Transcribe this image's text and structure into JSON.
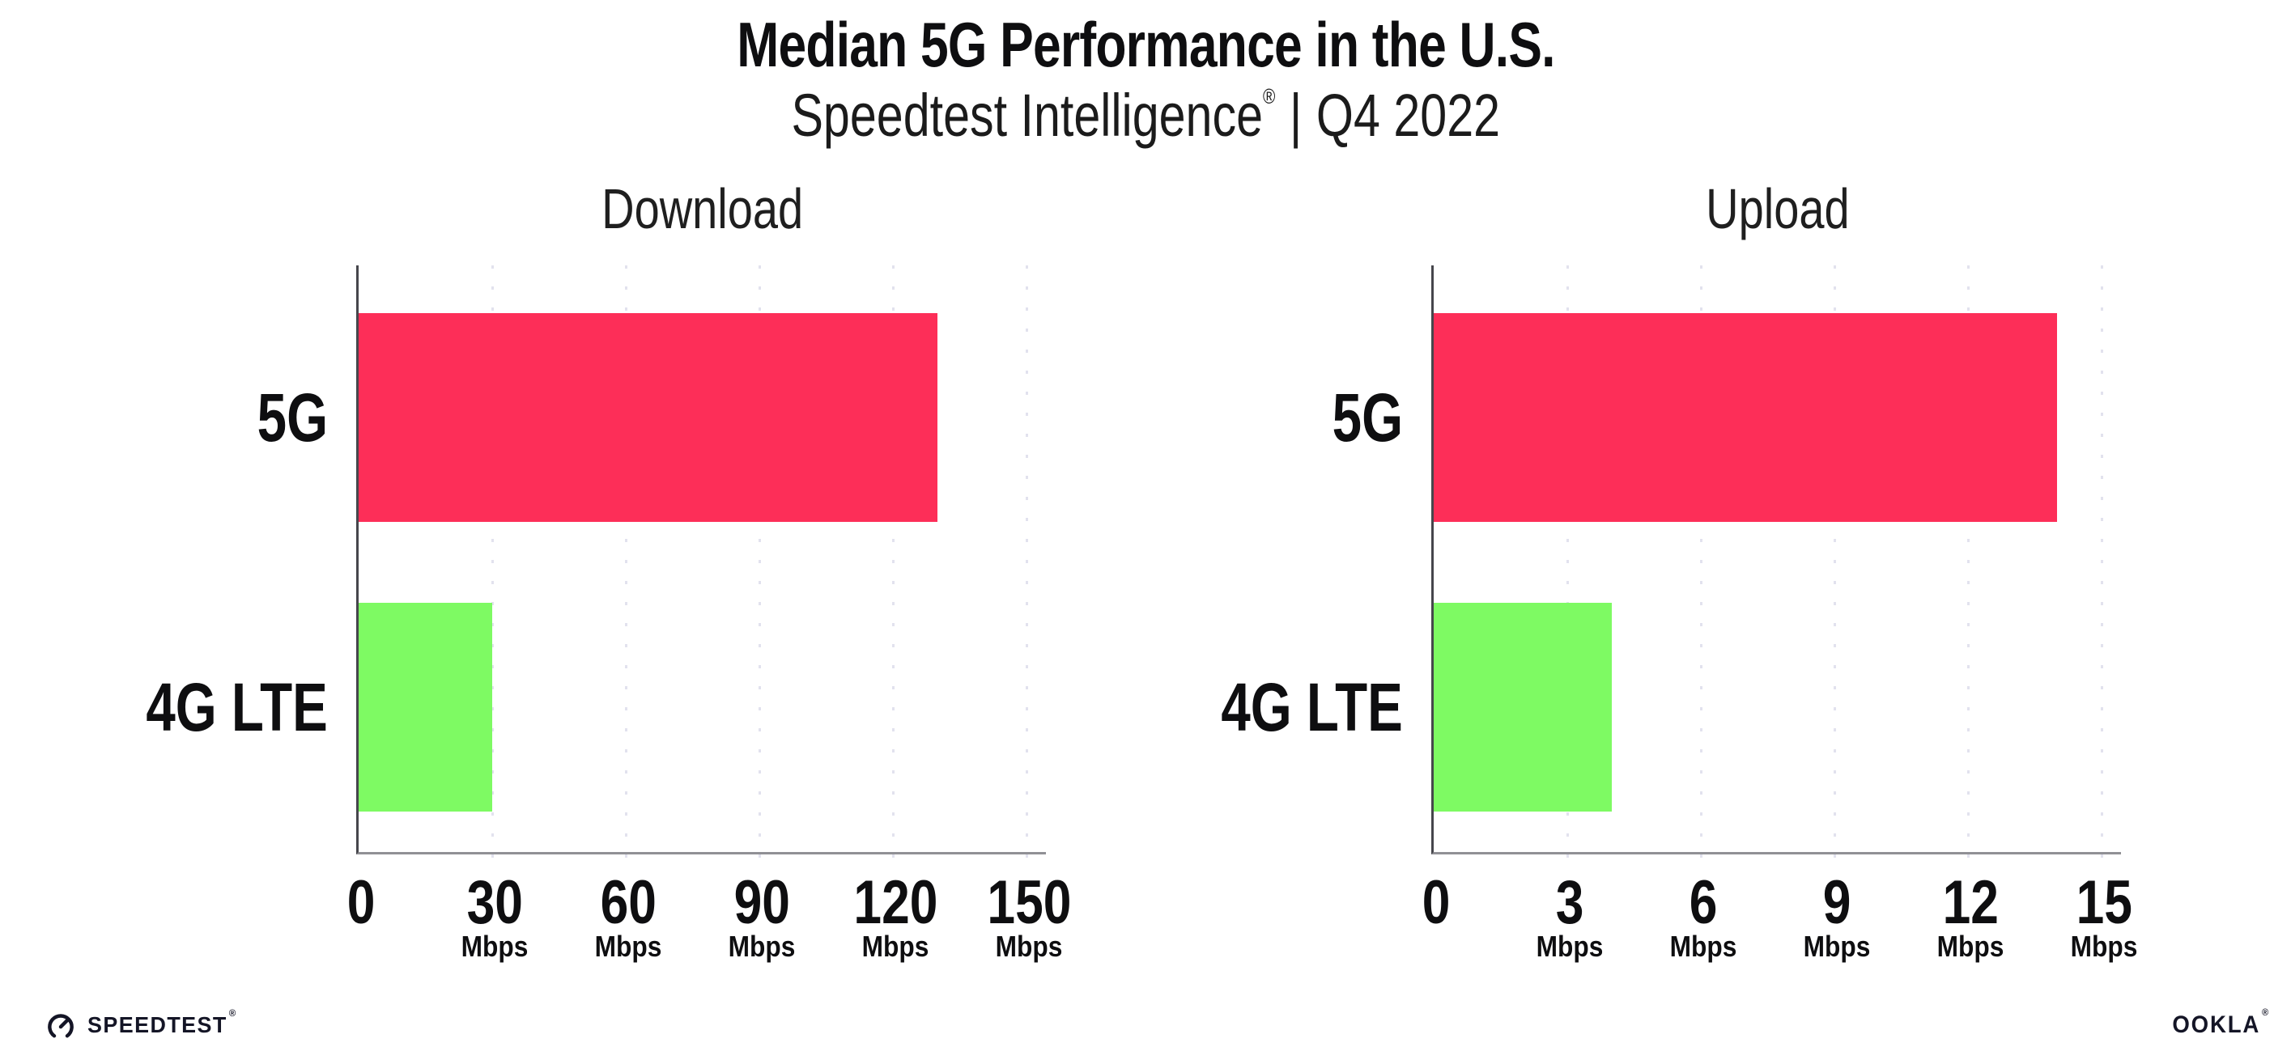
{
  "header": {
    "title": "Median 5G Performance in the U.S.",
    "subtitle": {
      "brand": "Speedtest Intelligence",
      "reg_mark": "®",
      "divider": "|",
      "period": "Q4 2022"
    }
  },
  "chart_data": [
    {
      "type": "bar",
      "orientation": "horizontal",
      "title": "Download",
      "categories": [
        "5G",
        "4G LTE"
      ],
      "values": [
        130,
        30
      ],
      "unit": "Mbps",
      "xlabel": "",
      "ylabel": "",
      "xlim": [
        0,
        150
      ],
      "xticks": [
        0,
        30,
        60,
        90,
        120,
        150
      ],
      "xtick_unit": "Mbps",
      "bar_colors": [
        "#fd2e58",
        "#7efa63"
      ],
      "grid": "vertical-dotted-at-major-ticks",
      "legend": "none"
    },
    {
      "type": "bar",
      "orientation": "horizontal",
      "title": "Upload",
      "categories": [
        "5G",
        "4G LTE"
      ],
      "values": [
        14,
        4
      ],
      "unit": "Mbps",
      "xlabel": "",
      "ylabel": "",
      "xlim": [
        0,
        15
      ],
      "xticks": [
        0,
        3,
        6,
        9,
        12,
        15
      ],
      "xtick_unit": "Mbps",
      "bar_colors": [
        "#fd2e58",
        "#7efa63"
      ],
      "grid": "vertical-dotted-at-major-ticks",
      "legend": "none"
    }
  ],
  "footer": {
    "speedtest_label": "SPEEDTEST",
    "speedtest_mark": "®",
    "ookla_label": "OOKLA",
    "ookla_mark": "®"
  },
  "colors": {
    "bar_5g": "#fd2e58",
    "bar_4g_lte": "#7efa63",
    "grid_dot": "#e2e2ee",
    "x_axis_line": "#909095",
    "y_axis_line": "#46464c",
    "text": "#0e0e10",
    "logo_text": "#141526"
  }
}
